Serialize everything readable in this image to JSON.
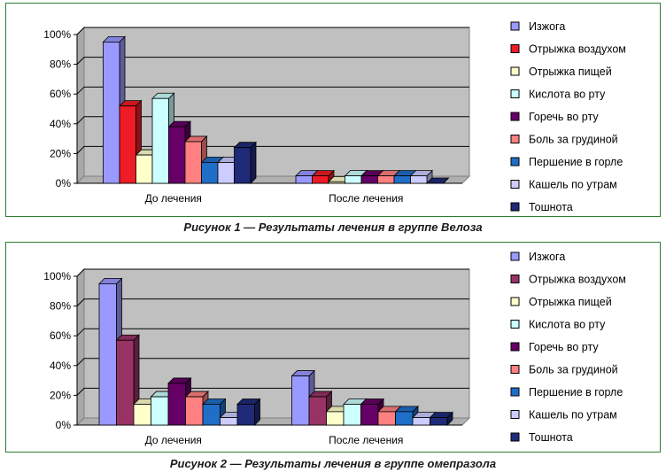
{
  "captions": {
    "fig1": "Рисунок 1 — Результаты лечения в группе Велоза",
    "fig2": "Рисунок 2 — Результаты лечения в группе омепразола"
  },
  "chart_data": [
    {
      "type": "bar",
      "title": "",
      "xlabel": "",
      "ylabel": "",
      "ylim": [
        0,
        100
      ],
      "yticks": [
        "0%",
        "20%",
        "40%",
        "60%",
        "80%",
        "100%"
      ],
      "categories": [
        "До лечения",
        "После лечения"
      ],
      "legend_position": "right",
      "grid": true,
      "series": [
        {
          "name": "Изжога",
          "color": "#9999ff",
          "values": [
            95,
            5
          ]
        },
        {
          "name": "Отрыжка воздухом",
          "color": "#ee1c24",
          "values": [
            52,
            5
          ]
        },
        {
          "name": "Отрыжка пищей",
          "color": "#ffffcc",
          "values": [
            19,
            1
          ]
        },
        {
          "name": "Кислота во рту",
          "color": "#ccffff",
          "values": [
            57,
            5
          ]
        },
        {
          "name": "Горечь во рту",
          "color": "#660066",
          "values": [
            38,
            5
          ]
        },
        {
          "name": "Боль за грудиной",
          "color": "#ff8080",
          "values": [
            28,
            5
          ]
        },
        {
          "name": "Першение в горле",
          "color": "#1f6ec8",
          "values": [
            14,
            5
          ]
        },
        {
          "name": "Кашель по утрам",
          "color": "#ccccff",
          "values": [
            14,
            5
          ]
        },
        {
          "name": "Тошнота",
          "color": "#1f2a78",
          "values": [
            24,
            0
          ]
        }
      ]
    },
    {
      "type": "bar",
      "title": "",
      "xlabel": "",
      "ylabel": "",
      "ylim": [
        0,
        100
      ],
      "yticks": [
        "0%",
        "20%",
        "40%",
        "60%",
        "80%",
        "100%"
      ],
      "categories": [
        "До лечения",
        "После лечения"
      ],
      "legend_position": "right",
      "grid": true,
      "series": [
        {
          "name": "Изжога",
          "color": "#9999ff",
          "values": [
            95,
            33
          ]
        },
        {
          "name": "Отрыжка воздухом",
          "color": "#993366",
          "values": [
            57,
            19
          ]
        },
        {
          "name": "Отрыжка пищей",
          "color": "#ffffcc",
          "values": [
            14,
            9
          ]
        },
        {
          "name": "Кислота во рту",
          "color": "#ccffff",
          "values": [
            19,
            14
          ]
        },
        {
          "name": "Горечь во рту",
          "color": "#660066",
          "values": [
            28,
            14
          ]
        },
        {
          "name": "Боль за грудиной",
          "color": "#ff8080",
          "values": [
            19,
            9
          ]
        },
        {
          "name": "Першение в горле",
          "color": "#1f6ec8",
          "values": [
            14,
            9
          ]
        },
        {
          "name": "Кашель по утрам",
          "color": "#ccccff",
          "values": [
            5,
            5
          ]
        },
        {
          "name": "Тошнота",
          "color": "#1f2a78",
          "values": [
            14,
            5
          ]
        }
      ]
    }
  ]
}
